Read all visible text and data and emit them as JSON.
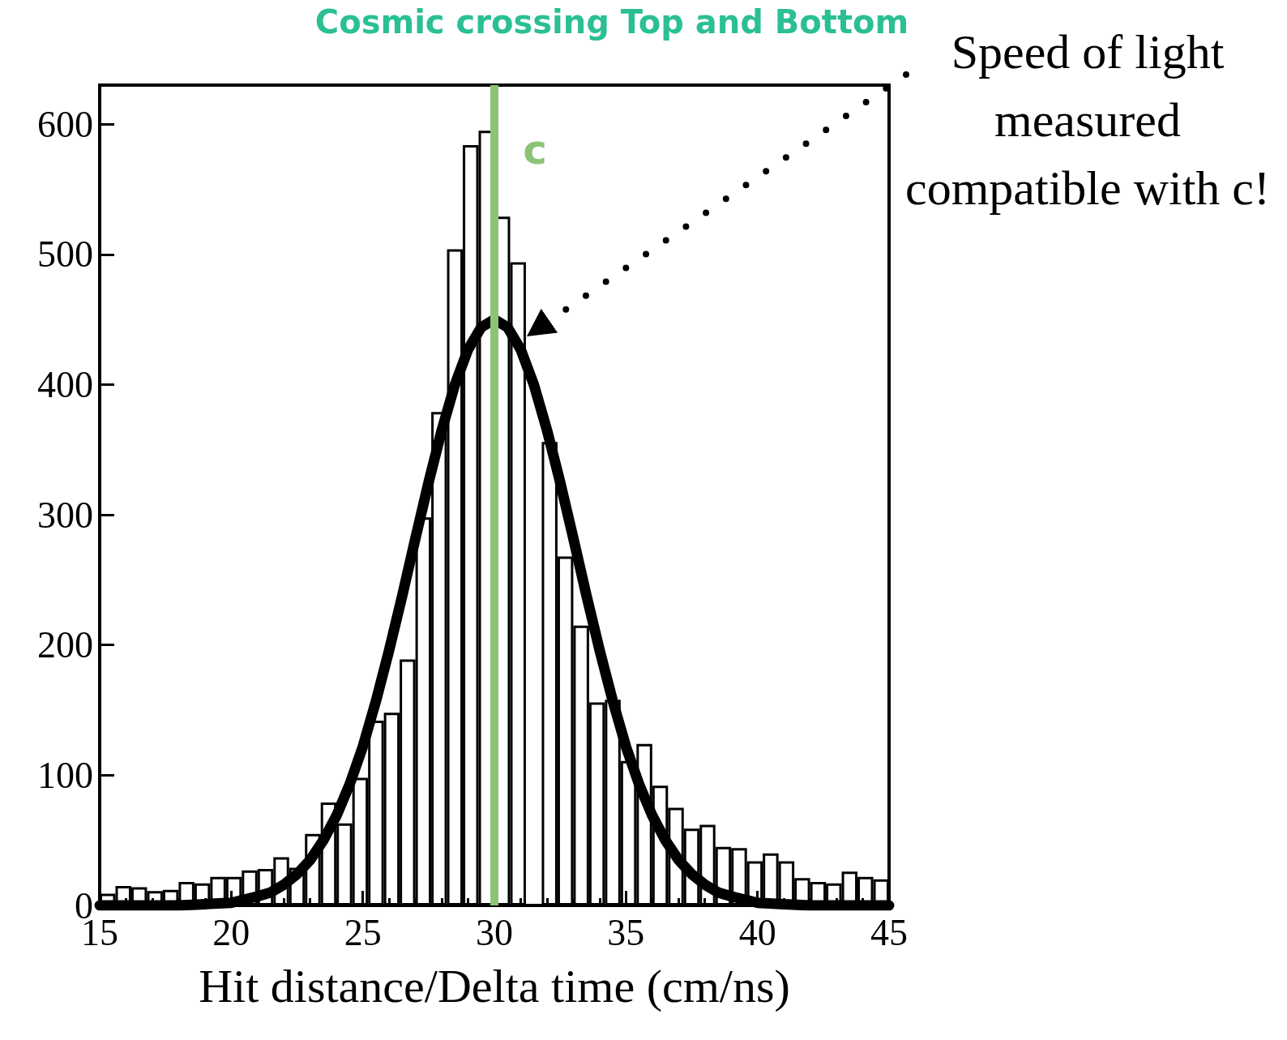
{
  "chart_data": {
    "type": "histogram",
    "title": "Cosmic crossing Top and Bottom",
    "xlabel": "Hit distance/Delta time (cm/ns)",
    "xlim": [
      15,
      45
    ],
    "xticks": [
      15,
      20,
      25,
      30,
      35,
      40,
      45
    ],
    "ylim": [
      0,
      630
    ],
    "yticks": [
      0,
      100,
      200,
      300,
      400,
      500,
      600
    ],
    "grid": false,
    "series": [
      {
        "type": "histogram",
        "color": "#000000",
        "bins": [
          15,
          15.6,
          16.2,
          16.8,
          17.4,
          18,
          18.6,
          19.2,
          19.8,
          20.4,
          21,
          21.6,
          22.2,
          22.8,
          23.4,
          24,
          24.6,
          25.2,
          25.8,
          26.4,
          27,
          27.6,
          28.2,
          28.8,
          29.4,
          30,
          30.6,
          31.2,
          31.8,
          32.4,
          33,
          33.6,
          34.2,
          34.8,
          35.4,
          36,
          36.6,
          37.2,
          37.8,
          38.4,
          39,
          39.6,
          40.2,
          40.8,
          41.4,
          42,
          42.6,
          43.2,
          43.8,
          44.4,
          45
        ],
        "values": [
          9,
          15,
          14,
          11,
          12,
          18,
          17,
          22,
          22,
          27,
          28,
          37,
          29,
          55,
          79,
          63,
          98,
          142,
          148,
          189,
          298,
          379,
          504,
          584,
          595,
          529,
          494,
          null,
          356,
          268,
          215,
          156,
          158,
          111,
          124,
          92,
          75,
          59,
          62,
          45,
          44,
          34,
          40,
          34,
          21,
          18,
          17,
          26,
          22,
          20
        ]
      },
      {
        "type": "line",
        "color": "#000000",
        "line_style": "solid",
        "x": [
          15,
          16,
          17,
          18,
          19,
          20,
          21,
          21.5,
          22,
          22.5,
          23,
          23.5,
          24,
          24.5,
          25,
          25.5,
          26,
          26.5,
          27,
          27.5,
          28,
          28.5,
          29,
          29.5,
          30,
          30.5,
          31,
          31.5,
          32,
          32.5,
          33,
          33.5,
          34,
          34.5,
          35,
          35.5,
          36,
          36.5,
          37,
          37.5,
          38,
          38.5,
          39,
          40,
          41,
          42,
          43,
          44,
          45
        ],
        "values": [
          0,
          0,
          0,
          0,
          1,
          2,
          7,
          10,
          16,
          24,
          35,
          50,
          69,
          93,
          122,
          157,
          196,
          238,
          282,
          325,
          365,
          400,
          427,
          444,
          450,
          444,
          427,
          400,
          365,
          325,
          282,
          238,
          196,
          157,
          122,
          93,
          69,
          50,
          35,
          24,
          16,
          10,
          7,
          2,
          1,
          0,
          0,
          0,
          0
        ]
      }
    ],
    "ref_lines": [
      {
        "axis": "x",
        "value": 30,
        "label": "c",
        "color": "#8cc477"
      }
    ],
    "annotations": [
      "Speed of light measured compatible with c!"
    ]
  }
}
